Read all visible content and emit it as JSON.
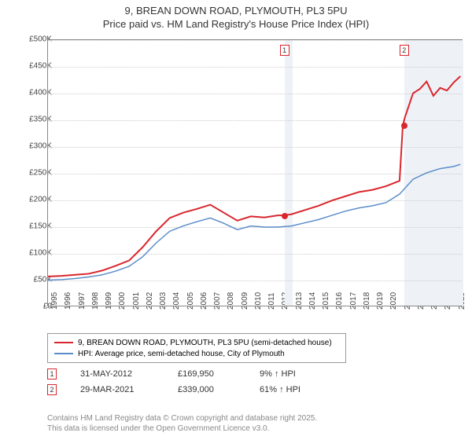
{
  "title_line1": "9, BREAN DOWN ROAD, PLYMOUTH, PL3 5PU",
  "title_line2": "Price paid vs. HM Land Registry's House Price Index (HPI)",
  "chart": {
    "type": "line",
    "background_color": "#ffffff",
    "grid_color": "#cccccc",
    "border_color": "#888888",
    "ylim": [
      0,
      500000
    ],
    "ytick_step": 50000,
    "y_ticks": [
      "£0",
      "£50K",
      "£100K",
      "£150K",
      "£200K",
      "£250K",
      "£300K",
      "£350K",
      "£400K",
      "£450K",
      "£500K"
    ],
    "x_years": [
      1995,
      1996,
      1997,
      1998,
      1999,
      2000,
      2001,
      2002,
      2003,
      2004,
      2005,
      2006,
      2007,
      2008,
      2009,
      2010,
      2011,
      2012,
      2013,
      2014,
      2015,
      2016,
      2017,
      2018,
      2019,
      2020,
      2021,
      2022,
      2023,
      2024,
      2025
    ],
    "shaded_bands": [
      {
        "x_start": 2012.42,
        "x_end": 2013.0,
        "color": "#eef2f7"
      },
      {
        "x_start": 2021.24,
        "x_end": 2025.6,
        "color": "#eef2f7"
      }
    ],
    "series": [
      {
        "name": "price_paid",
        "label": "9, BREAN DOWN ROAD, PLYMOUTH, PL3 5PU (semi-detached house)",
        "color": "#d9262d",
        "line_width": 2,
        "data": [
          [
            1995,
            55000
          ],
          [
            1996,
            56000
          ],
          [
            1997,
            58000
          ],
          [
            1998,
            60000
          ],
          [
            1999,
            66000
          ],
          [
            2000,
            75000
          ],
          [
            2001,
            85000
          ],
          [
            2002,
            110000
          ],
          [
            2003,
            140000
          ],
          [
            2004,
            165000
          ],
          [
            2005,
            175000
          ],
          [
            2006,
            182000
          ],
          [
            2007,
            190000
          ],
          [
            2008,
            175000
          ],
          [
            2009,
            160000
          ],
          [
            2010,
            168000
          ],
          [
            2011,
            166000
          ],
          [
            2012,
            169950
          ],
          [
            2012.42,
            169950
          ],
          [
            2013,
            172000
          ],
          [
            2014,
            180000
          ],
          [
            2015,
            188000
          ],
          [
            2016,
            198000
          ],
          [
            2017,
            206000
          ],
          [
            2018,
            214000
          ],
          [
            2019,
            218000
          ],
          [
            2020,
            225000
          ],
          [
            2021,
            235000
          ],
          [
            2021.24,
            339000
          ],
          [
            2021.4,
            355000
          ],
          [
            2022,
            400000
          ],
          [
            2022.5,
            408000
          ],
          [
            2023,
            422000
          ],
          [
            2023.5,
            395000
          ],
          [
            2024,
            410000
          ],
          [
            2024.5,
            405000
          ],
          [
            2025,
            420000
          ],
          [
            2025.5,
            432000
          ]
        ]
      },
      {
        "name": "hpi",
        "label": "HPI: Average price, semi-detached house, City of Plymouth",
        "color": "#5b8dc9",
        "line_width": 1.5,
        "data": [
          [
            1995,
            48000
          ],
          [
            1996,
            49000
          ],
          [
            1997,
            51000
          ],
          [
            1998,
            54000
          ],
          [
            1999,
            58000
          ],
          [
            2000,
            65000
          ],
          [
            2001,
            74000
          ],
          [
            2002,
            92000
          ],
          [
            2003,
            118000
          ],
          [
            2004,
            140000
          ],
          [
            2005,
            150000
          ],
          [
            2006,
            158000
          ],
          [
            2007,
            165000
          ],
          [
            2008,
            155000
          ],
          [
            2009,
            143000
          ],
          [
            2010,
            150000
          ],
          [
            2011,
            148000
          ],
          [
            2012,
            148000
          ],
          [
            2013,
            150000
          ],
          [
            2014,
            156000
          ],
          [
            2015,
            162000
          ],
          [
            2016,
            170000
          ],
          [
            2017,
            178000
          ],
          [
            2018,
            184000
          ],
          [
            2019,
            188000
          ],
          [
            2020,
            194000
          ],
          [
            2021,
            210000
          ],
          [
            2022,
            238000
          ],
          [
            2023,
            250000
          ],
          [
            2024,
            258000
          ],
          [
            2025,
            262000
          ],
          [
            2025.5,
            266000
          ]
        ]
      }
    ],
    "sale_markers": [
      {
        "n": 1,
        "x": 2012.42,
        "y": 169950,
        "color": "#d9262d"
      },
      {
        "n": 2,
        "x": 2021.24,
        "y": 339000,
        "color": "#d9262d"
      }
    ]
  },
  "legend": {
    "items": [
      {
        "color": "#d9262d",
        "width": 2,
        "label": "9, BREAN DOWN ROAD, PLYMOUTH, PL3 5PU (semi-detached house)"
      },
      {
        "color": "#5b8dc9",
        "width": 1.5,
        "label": "HPI: Average price, semi-detached house, City of Plymouth"
      }
    ]
  },
  "sale_rows": [
    {
      "n": "1",
      "date": "31-MAY-2012",
      "price": "£169,950",
      "pct": "9% ↑ HPI",
      "color": "#d9262d"
    },
    {
      "n": "2",
      "date": "29-MAR-2021",
      "price": "£339,000",
      "pct": "61% ↑ HPI",
      "color": "#d9262d"
    }
  ],
  "footer_line1": "Contains HM Land Registry data © Crown copyright and database right 2025.",
  "footer_line2": "This data is licensed under the Open Government Licence v3.0."
}
